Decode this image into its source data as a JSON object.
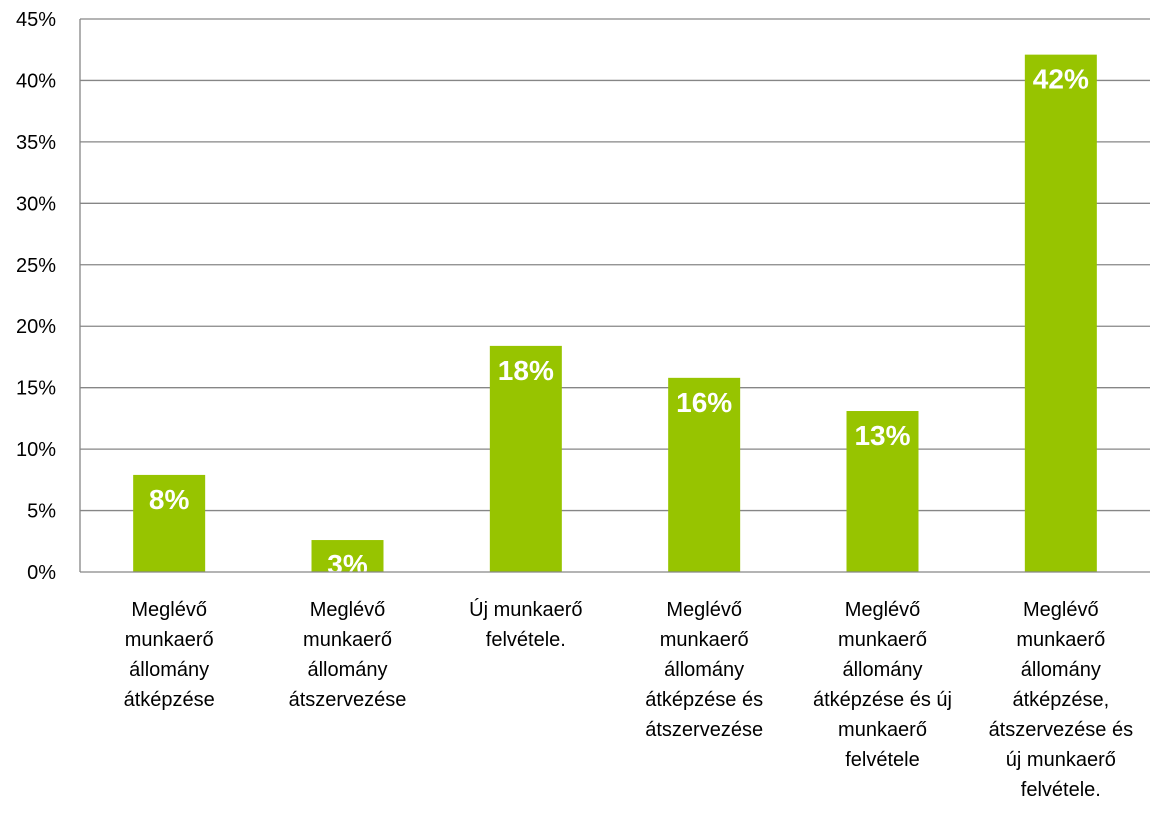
{
  "chart_data": {
    "type": "bar",
    "categories": [
      [
        "Meglévő",
        "munkaerő",
        "állomány",
        "átképzése"
      ],
      [
        "Meglévő",
        "munkaerő",
        "állomány",
        "átszervezése"
      ],
      [
        "Új munkaerő",
        "felvétele."
      ],
      [
        "Meglévő",
        "munkaerő",
        "állomány",
        "átképzése és",
        "átszervezése"
      ],
      [
        "Meglévő",
        "munkaerő",
        "állomány",
        "átképzése és új",
        "munkaerő",
        "felvétele"
      ],
      [
        "Meglévő",
        "munkaerő",
        "állomány",
        "átképzése,",
        "átszervezése és",
        "új munkaerő",
        "felvétele."
      ]
    ],
    "values": [
      7.9,
      2.6,
      18.4,
      15.8,
      13.1,
      42.1
    ],
    "data_labels": [
      "8%",
      "3%",
      "18%",
      "16%",
      "13%",
      "42%"
    ],
    "ylim": [
      0,
      45
    ],
    "yticks": [
      "0%",
      "5%",
      "10%",
      "15%",
      "20%",
      "25%",
      "30%",
      "35%",
      "40%",
      "45%"
    ],
    "grid": true,
    "bar_color": "#97C400",
    "gridline_color": "#868686"
  }
}
